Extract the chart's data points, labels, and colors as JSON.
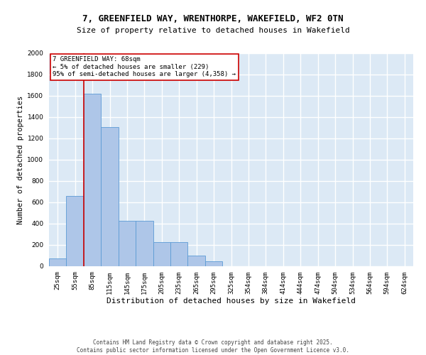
{
  "title_line1": "7, GREENFIELD WAY, WRENTHORPE, WAKEFIELD, WF2 0TN",
  "title_line2": "Size of property relative to detached houses in Wakefield",
  "xlabel": "Distribution of detached houses by size in Wakefield",
  "ylabel": "Number of detached properties",
  "footnote1": "Contains HM Land Registry data © Crown copyright and database right 2025.",
  "footnote2": "Contains public sector information licensed under the Open Government Licence v3.0.",
  "categories": [
    "25sqm",
    "55sqm",
    "85sqm",
    "115sqm",
    "145sqm",
    "175sqm",
    "205sqm",
    "235sqm",
    "265sqm",
    "295sqm",
    "325sqm",
    "354sqm",
    "384sqm",
    "414sqm",
    "444sqm",
    "474sqm",
    "504sqm",
    "534sqm",
    "564sqm",
    "594sqm",
    "624sqm"
  ],
  "values": [
    75,
    660,
    1620,
    1310,
    430,
    430,
    230,
    230,
    100,
    50,
    0,
    0,
    0,
    0,
    0,
    0,
    0,
    0,
    0,
    0,
    0
  ],
  "bar_color": "#aec6e8",
  "bar_edge_color": "#5b9bd5",
  "background_color": "#dce9f5",
  "grid_color": "#ffffff",
  "vline_color": "#cc0000",
  "vline_x_index": 1,
  "annotation_text": "7 GREENFIELD WAY: 68sqm\n← 5% of detached houses are smaller (229)\n95% of semi-detached houses are larger (4,358) →",
  "annotation_box_facecolor": "#ffffff",
  "annotation_box_edgecolor": "#cc0000",
  "ylim": [
    0,
    2000
  ],
  "yticks": [
    0,
    200,
    400,
    600,
    800,
    1000,
    1200,
    1400,
    1600,
    1800,
    2000
  ],
  "title_fontsize": 9,
  "subtitle_fontsize": 8,
  "ylabel_fontsize": 7.5,
  "xlabel_fontsize": 8,
  "tick_fontsize": 6.5,
  "annot_fontsize": 6.5,
  "footnote_fontsize": 5.5
}
